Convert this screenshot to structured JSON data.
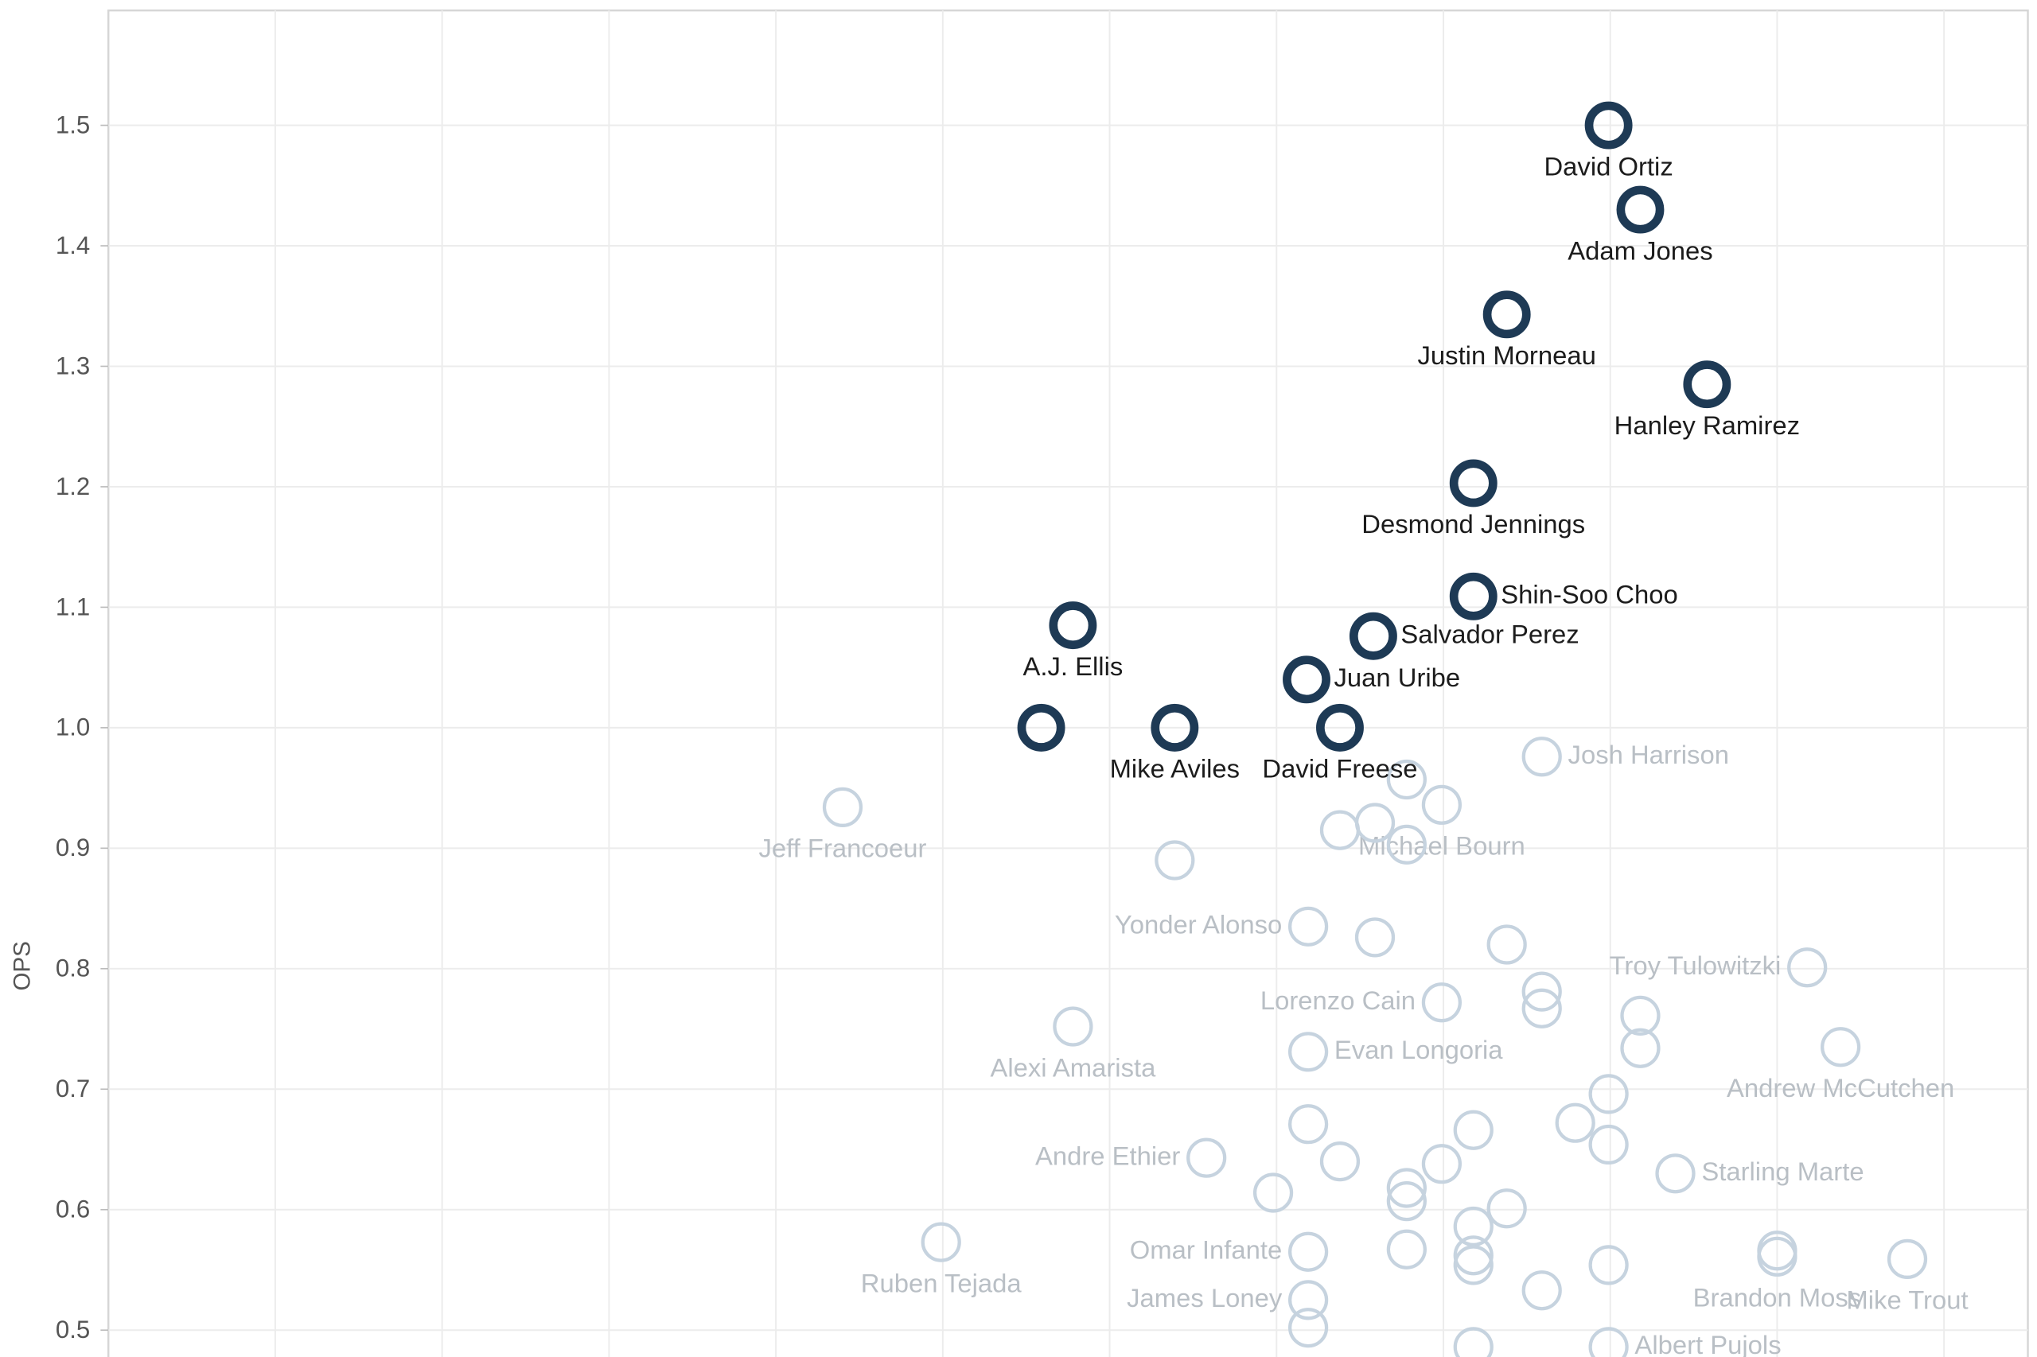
{
  "chart_data": {
    "type": "scatter",
    "y_label": "OPS",
    "xlim": [
      0,
      11.5
    ],
    "ylim": [
      0.47,
      1.6
    ],
    "yticks": [
      0.5,
      0.6,
      0.7,
      0.8,
      0.9,
      {
        "value": 1,
        "label": "1.0"
      },
      1.1,
      1.2,
      1.3,
      1.4,
      1.5
    ],
    "grid": true,
    "series": [
      {
        "color": "#c6d3df",
        "x": [
          8.59,
          7.78,
          7.99,
          7.38,
          7.59,
          7.78,
          4.4,
          6.39,
          7.19,
          7.59,
          8.38,
          10.18,
          8.59,
          8.59,
          7.99,
          9.18,
          5.78,
          7.19,
          9.18,
          10.38,
          8.99,
          7.19,
          8.79,
          8.18,
          8.99,
          6.58,
          7.38,
          7.99,
          9.39,
          6.98,
          7.78,
          7.78,
          8.38,
          8.18,
          4.99,
          7.19,
          7.78,
          8.18,
          8.18,
          10.0,
          10.0,
          8.99,
          10.78,
          7.19,
          8.59,
          7.19,
          8.18,
          8.99
        ],
        "values": [
          0.976,
          0.957,
          0.936,
          0.915,
          0.921,
          0.903,
          0.934,
          0.89,
          0.835,
          0.826,
          0.82,
          0.801,
          0.781,
          0.767,
          0.772,
          0.761,
          0.752,
          0.731,
          0.734,
          0.735,
          0.696,
          0.671,
          0.672,
          0.666,
          0.654,
          0.643,
          0.64,
          0.638,
          0.63,
          0.614,
          0.618,
          0.607,
          0.601,
          0.586,
          0.573,
          0.565,
          0.567,
          0.562,
          0.554,
          0.566,
          0.561,
          0.554,
          0.559,
          0.525,
          0.533,
          0.502,
          0.486,
          0.486
        ],
        "labels": [
          "Josh Harrison",
          null,
          "Michael Bourn",
          null,
          null,
          null,
          "Jeff Francoeur",
          null,
          "Yonder Alonso",
          null,
          null,
          "Troy Tulowitzki",
          null,
          null,
          "Lorenzo Cain",
          null,
          "Alexi Amarista",
          "Evan Longoria",
          null,
          "Andrew McCutchen",
          null,
          null,
          null,
          null,
          null,
          "Andre Ethier",
          null,
          null,
          "Starling Marte",
          null,
          null,
          null,
          null,
          null,
          "Ruben Tejada",
          "Omar Infante",
          null,
          null,
          null,
          null,
          "Brandon Moss",
          null,
          "Mike Trout",
          "James Loney",
          null,
          null,
          null,
          "Albert Pujols"
        ]
      },
      {
        "color": "#1e3a55",
        "x": [
          8.99,
          9.18,
          8.38,
          9.58,
          8.18,
          8.18,
          7.58,
          5.78,
          7.18,
          5.59,
          6.39,
          7.38
        ],
        "values": [
          1.5,
          1.43,
          1.343,
          1.285,
          1.203,
          1.109,
          1.076,
          1.085,
          1.04,
          1.0,
          1.0,
          1.0
        ],
        "labels": [
          "David Ortiz",
          "Adam Jones",
          "Justin Morneau",
          "Hanley Ramirez",
          "Desmond Jennings",
          "Shin-Soo Choo",
          "Salvador Perez",
          "A.J. Ellis",
          "Juan Uribe",
          null,
          "Mike Aviles",
          "David Freese"
        ]
      }
    ]
  }
}
